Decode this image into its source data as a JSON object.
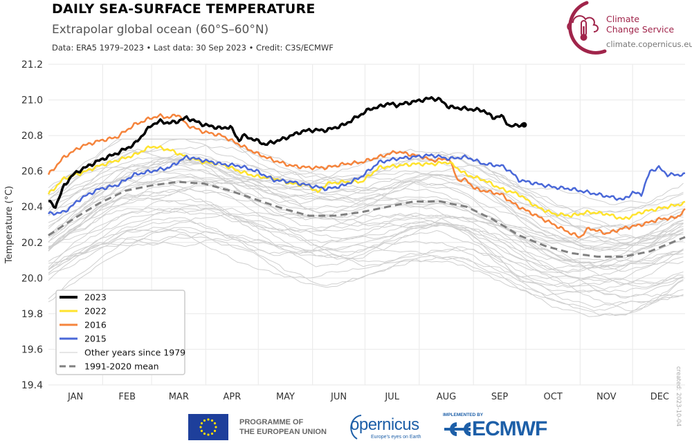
{
  "header": {
    "title": "DAILY SEA-SURFACE TEMPERATURE",
    "subtitle": "Extrapolar global ocean (60°S–60°N)",
    "caption": "Data: ERA5 1979–2023 • Last data: 30 Sep 2023 • Credit: C3S/ECMWF"
  },
  "logo": {
    "name_line1": "Climate",
    "name_line2": "Change Service",
    "url": "climate.copernicus.eu",
    "color": "#a0244a"
  },
  "created_label": "created: 2023-10-04",
  "footer": {
    "eu_text_line1": "PROGRAMME OF",
    "eu_text_line2": "THE EUROPEAN UNION",
    "copernicus_word": "opernicus",
    "copernicus_tagline": "Europe's eyes on Earth",
    "implemented_by": "IMPLEMENTED BY",
    "ecmwf": "ECMWF"
  },
  "chart_data": {
    "type": "line",
    "title": "DAILY SEA-SURFACE TEMPERATURE",
    "subtitle": "Extrapolar global ocean (60°S–60°N)",
    "xlabel": "",
    "ylabel": "Temperature (°C)",
    "ylim": [
      19.4,
      21.2
    ],
    "yticks": [
      "19.4",
      "19.6",
      "19.8",
      "20.0",
      "20.2",
      "20.4",
      "20.6",
      "20.8",
      "21.0",
      "21.2"
    ],
    "xlim_day": [
      1,
      365
    ],
    "xticks": [
      "JAN",
      "FEB",
      "MAR",
      "APR",
      "MAY",
      "JUN",
      "JUL",
      "AUG",
      "SEP",
      "OCT",
      "NOV",
      "DEC"
    ],
    "grid": true,
    "legend_position": "bottom-left",
    "legend": [
      {
        "label": "2023",
        "color": "#000000",
        "style": "solid-thick"
      },
      {
        "label": "2022",
        "color": "#ffe32e",
        "style": "solid"
      },
      {
        "label": "2016",
        "color": "#f5843c",
        "style": "solid"
      },
      {
        "label": "2015",
        "color": "#4a68d8",
        "style": "solid"
      },
      {
        "label": "Other years since 1979",
        "color": "#cccccc",
        "style": "thin"
      },
      {
        "label": "1991-2020 mean",
        "color": "#808080",
        "style": "dashed"
      }
    ],
    "series": [
      {
        "name": "2023",
        "color": "#000000",
        "x": [
          1,
          5,
          10,
          15,
          20,
          30,
          40,
          50,
          60,
          65,
          70,
          75,
          80,
          85,
          90,
          95,
          100,
          105,
          110,
          112,
          118,
          125,
          135,
          145,
          150,
          160,
          170,
          180,
          185,
          190,
          195,
          200,
          210,
          220,
          225,
          230,
          240,
          250,
          255,
          260,
          265,
          270,
          273
        ],
        "y": [
          20.43,
          20.4,
          20.52,
          20.58,
          20.61,
          20.66,
          20.7,
          20.75,
          20.86,
          20.88,
          20.87,
          20.88,
          20.9,
          20.88,
          20.86,
          20.85,
          20.84,
          20.85,
          20.77,
          20.8,
          20.78,
          20.75,
          20.78,
          20.82,
          20.83,
          20.83,
          20.86,
          20.92,
          20.95,
          20.96,
          20.98,
          20.97,
          20.99,
          21.01,
          21.0,
          20.96,
          20.95,
          20.94,
          20.9,
          20.91,
          20.85,
          20.86,
          20.86
        ]
      },
      {
        "name": "2022",
        "color": "#ffe32e",
        "x": [
          1,
          10,
          20,
          30,
          40,
          50,
          60,
          70,
          80,
          90,
          100,
          110,
          120,
          130,
          140,
          150,
          155,
          160,
          170,
          180,
          190,
          200,
          210,
          220,
          230,
          240,
          250,
          260,
          270,
          280,
          290,
          300,
          310,
          320,
          330,
          340,
          350,
          360,
          365
        ],
        "y": [
          20.47,
          20.56,
          20.59,
          20.63,
          20.66,
          20.69,
          20.74,
          20.72,
          20.68,
          20.65,
          20.64,
          20.6,
          20.57,
          20.56,
          20.53,
          20.52,
          20.48,
          20.53,
          20.54,
          20.54,
          20.62,
          20.63,
          20.64,
          20.64,
          20.65,
          20.58,
          20.55,
          20.5,
          20.47,
          20.4,
          20.36,
          20.35,
          20.37,
          20.36,
          20.33,
          20.37,
          20.39,
          20.41,
          20.42
        ]
      },
      {
        "name": "2016",
        "color": "#f5843c",
        "x": [
          1,
          10,
          20,
          30,
          40,
          50,
          55,
          60,
          65,
          70,
          75,
          80,
          85,
          90,
          100,
          110,
          120,
          130,
          140,
          150,
          160,
          170,
          180,
          190,
          200,
          210,
          215,
          220,
          230,
          235,
          240,
          245,
          250,
          260,
          265,
          270,
          280,
          290,
          300,
          305,
          310,
          320,
          330,
          340,
          350,
          360,
          365
        ],
        "y": [
          20.58,
          20.68,
          20.74,
          20.77,
          20.79,
          20.86,
          20.88,
          20.9,
          20.91,
          20.9,
          20.92,
          20.86,
          20.84,
          20.82,
          20.8,
          20.75,
          20.7,
          20.66,
          20.63,
          20.62,
          20.62,
          20.64,
          20.65,
          20.68,
          20.71,
          20.69,
          20.68,
          20.66,
          20.67,
          20.55,
          20.55,
          20.5,
          20.49,
          20.47,
          20.43,
          20.4,
          20.35,
          20.3,
          20.25,
          20.23,
          20.28,
          20.25,
          20.28,
          20.3,
          20.33,
          20.34,
          20.38
        ]
      },
      {
        "name": "2015",
        "color": "#4a68d8",
        "x": [
          1,
          10,
          20,
          30,
          40,
          50,
          60,
          70,
          80,
          90,
          100,
          110,
          120,
          130,
          140,
          150,
          160,
          170,
          180,
          190,
          200,
          210,
          220,
          230,
          240,
          250,
          260,
          265,
          270,
          280,
          290,
          300,
          310,
          320,
          330,
          335,
          340,
          345,
          350,
          355,
          360,
          365
        ],
        "y": [
          20.36,
          20.37,
          20.45,
          20.5,
          20.52,
          20.58,
          20.6,
          20.62,
          20.68,
          20.66,
          20.64,
          20.63,
          20.6,
          20.55,
          20.54,
          20.52,
          20.5,
          20.52,
          20.57,
          20.65,
          20.67,
          20.68,
          20.69,
          20.67,
          20.68,
          20.64,
          20.63,
          20.6,
          20.55,
          20.53,
          20.51,
          20.5,
          20.48,
          20.46,
          20.44,
          20.48,
          20.47,
          20.6,
          20.62,
          20.58,
          20.58,
          20.58
        ]
      },
      {
        "name": "1991-2020 mean",
        "color": "#808080",
        "dashed": true,
        "x": [
          1,
          15,
          30,
          45,
          60,
          75,
          90,
          105,
          120,
          135,
          150,
          165,
          180,
          195,
          210,
          225,
          240,
          255,
          270,
          285,
          300,
          315,
          330,
          345,
          365
        ],
        "y": [
          20.24,
          20.33,
          20.42,
          20.49,
          20.52,
          20.54,
          20.53,
          20.49,
          20.44,
          20.39,
          20.35,
          20.35,
          20.37,
          20.4,
          20.43,
          20.43,
          20.4,
          20.33,
          20.24,
          20.18,
          20.14,
          20.12,
          20.12,
          20.15,
          20.23
        ]
      }
    ],
    "other_years_note": "Approx. 40 thin grey lines (1979-2021, excluding 2015/2016/2022) spanning roughly 19.6–20.75 °C"
  }
}
